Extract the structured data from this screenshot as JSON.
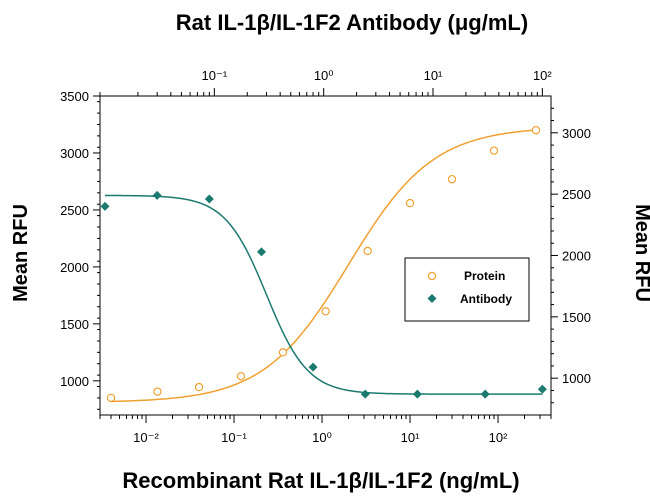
{
  "chart_data": {
    "type": "scatter",
    "top_title": "Rat IL-1β/IL-1F2 Antibody (μg/mL)",
    "xlabel": "Recombinant Rat IL-1β/IL-1F2 (ng/mL)",
    "ylabel_left": "Mean RFU",
    "ylabel_right": "Mean RFU",
    "x_scale": "log",
    "xlim": [
      0.003,
      400
    ],
    "top_x_scale": "log",
    "top_xlim": [
      0.009,
      120
    ],
    "ylim_left": [
      700,
      3500
    ],
    "ylim_right": [
      700,
      3300
    ],
    "grid": false,
    "legend_position": "center-right",
    "x_tick_labels": [
      "10⁻²",
      "10⁻¹",
      "10⁰",
      "10¹",
      "10²"
    ],
    "top_x_tick_labels": [
      "10⁻¹",
      "10⁰",
      "10¹",
      "10²"
    ],
    "y_left_tick_labels": [
      "1000",
      "1500",
      "2000",
      "2500",
      "3000",
      "3500"
    ],
    "y_right_tick_labels": [
      "1000",
      "1500",
      "2000",
      "2500",
      "3000"
    ],
    "series": [
      {
        "name": "Protein",
        "marker": "open-circle",
        "color": "#F0A030",
        "axis": "bottom-left",
        "points": [
          {
            "x": 0.004,
            "y": 850
          },
          {
            "x": 0.0135,
            "y": 905
          },
          {
            "x": 0.04,
            "y": 945
          },
          {
            "x": 0.12,
            "y": 1040
          },
          {
            "x": 0.36,
            "y": 1250
          },
          {
            "x": 1.1,
            "y": 1610
          },
          {
            "x": 3.3,
            "y": 2140
          },
          {
            "x": 10,
            "y": 2560
          },
          {
            "x": 30,
            "y": 2770
          },
          {
            "x": 90,
            "y": 3020
          },
          {
            "x": 270,
            "y": 3200
          }
        ]
      },
      {
        "name": "Antibody",
        "marker": "filled-diamond",
        "color": "#1A7A70",
        "axis": "top-right",
        "points": [
          {
            "x": 0.01,
            "y": 2400
          },
          {
            "x": 0.03,
            "y": 2490
          },
          {
            "x": 0.09,
            "y": 2460
          },
          {
            "x": 0.27,
            "y": 2030
          },
          {
            "x": 0.8,
            "y": 1090
          },
          {
            "x": 2.4,
            "y": 870
          },
          {
            "x": 7.2,
            "y": 870
          },
          {
            "x": 30,
            "y": 870
          },
          {
            "x": 100,
            "y": 910
          }
        ]
      }
    ]
  }
}
